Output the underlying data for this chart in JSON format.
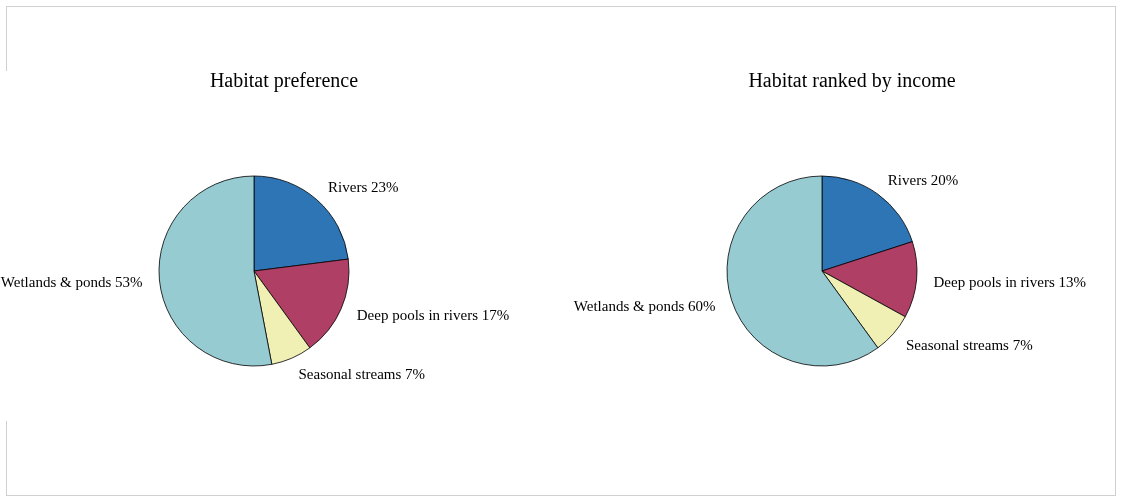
{
  "chart_data": [
    {
      "type": "pie",
      "title": "Habitat preference",
      "categories": [
        "Rivers",
        "Deep pools in rivers",
        "Seasonal streams",
        "Wetlands & ponds"
      ],
      "values": [
        23,
        17,
        7,
        53
      ],
      "value_labels": [
        "23%",
        "17%",
        "7%",
        "53%"
      ],
      "colors": [
        "#2e75b6",
        "#b03f66",
        "#f0efb4",
        "#96cbd2"
      ]
    },
    {
      "type": "pie",
      "title": "Habitat ranked by income",
      "categories": [
        "Rivers",
        "Deep pools in rivers",
        "Seasonal streams",
        "Wetlands & ponds"
      ],
      "values": [
        20,
        13,
        7,
        60
      ],
      "value_labels": [
        "20%",
        "13%",
        "7%",
        "60%"
      ],
      "colors": [
        "#2e75b6",
        "#b03f66",
        "#f0efb4",
        "#96cbd2"
      ]
    }
  ]
}
